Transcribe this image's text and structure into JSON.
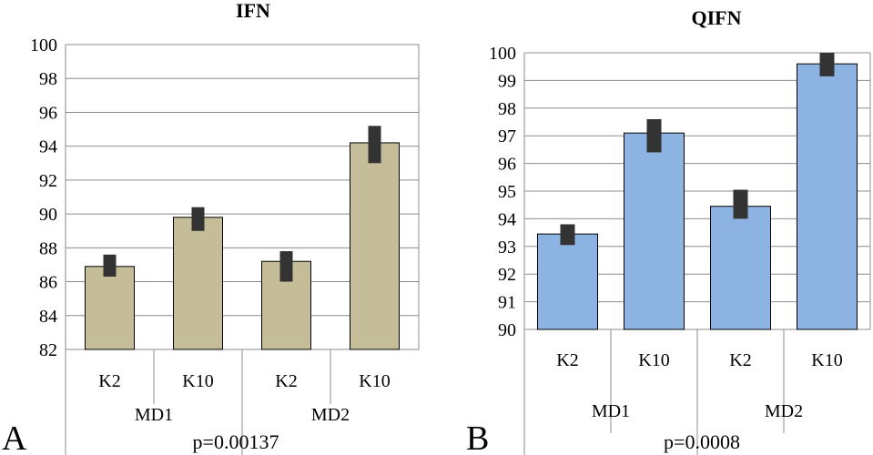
{
  "chart_data": [
    {
      "type": "bar",
      "panel_label": "A",
      "title": "IFN",
      "categories": [
        "K2",
        "K10",
        "K2",
        "K10"
      ],
      "groups": [
        "MD1",
        "MD2"
      ],
      "values": [
        86.9,
        89.8,
        87.2,
        94.2
      ],
      "error_low": [
        86.3,
        89.0,
        86.0,
        93.0
      ],
      "error_high": [
        87.6,
        90.4,
        87.8,
        95.2
      ],
      "ylim": [
        82,
        100
      ],
      "yticks": [
        82,
        84,
        86,
        88,
        90,
        92,
        94,
        96,
        98,
        100
      ],
      "note": "p=0.00137",
      "bar_color": "#c4bd97",
      "grid": true
    },
    {
      "type": "bar",
      "panel_label": "B",
      "title": "QIFN",
      "categories": [
        "K2",
        "K10",
        "K2",
        "K10"
      ],
      "groups": [
        "MD1",
        "MD2"
      ],
      "values": [
        93.45,
        97.1,
        94.45,
        99.6
      ],
      "error_low": [
        93.05,
        96.4,
        94.0,
        99.15
      ],
      "error_high": [
        93.8,
        97.6,
        95.05,
        100.0
      ],
      "ylim": [
        90,
        100
      ],
      "yticks": [
        90,
        91,
        92,
        93,
        94,
        95,
        96,
        97,
        98,
        99,
        100
      ],
      "note": "p=0.0008",
      "bar_color": "#8db3e2",
      "grid": true
    }
  ]
}
